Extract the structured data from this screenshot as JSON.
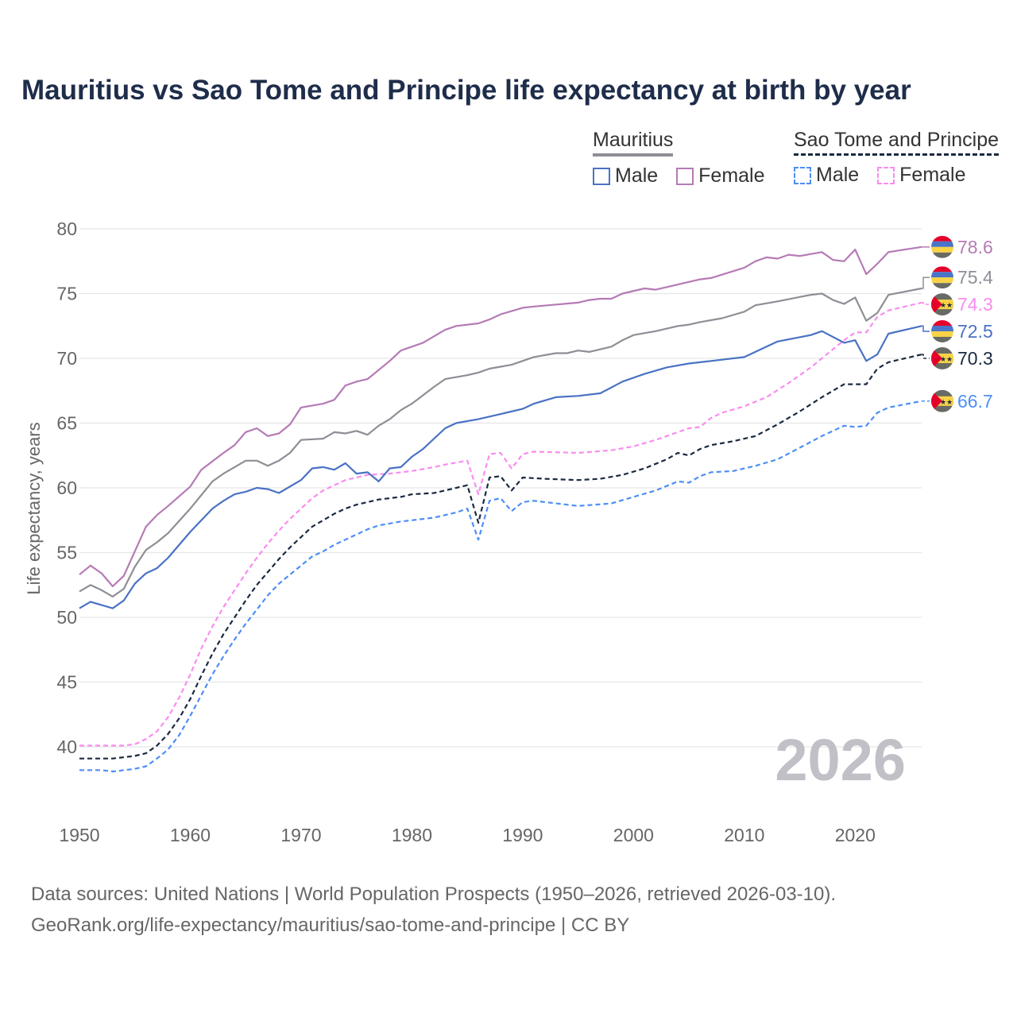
{
  "chart_data": {
    "type": "line",
    "title": "Mauritius vs Sao Tome and Principe life expectancy at birth by year",
    "ylabel": "Life expectancy, years",
    "xlabel": "",
    "xlim": [
      1950,
      2026
    ],
    "ylim": [
      37,
      80
    ],
    "x_ticks": [
      1950,
      1960,
      1970,
      1980,
      1990,
      2000,
      2010,
      2020
    ],
    "y_ticks": [
      40,
      45,
      50,
      55,
      60,
      65,
      70,
      75,
      80
    ],
    "grid": true,
    "watermark_year": "2026",
    "legend": {
      "placement": "top-right",
      "groups": [
        {
          "name": "Mauritius",
          "items": [
            "Male",
            "Female"
          ]
        },
        {
          "name": "Sao Tome and Principe",
          "items": [
            "Male",
            "Female"
          ]
        }
      ]
    },
    "series": [
      {
        "name": "Mauritius Female",
        "country": "Mauritius",
        "color": "#b57bb5",
        "dashed": false,
        "end_label": "78.6",
        "x": [
          1950,
          1951,
          1952,
          1953,
          1954,
          1955,
          1956,
          1957,
          1958,
          1960,
          1961,
          1963,
          1964,
          1965,
          1966,
          1967,
          1968,
          1969,
          1970,
          1972,
          1973,
          1974,
          1975,
          1976,
          1978,
          1979,
          1981,
          1983,
          1984,
          1986,
          1987,
          1988,
          1990,
          1991,
          1995,
          1996,
          1997,
          1998,
          1999,
          2001,
          2002,
          2004,
          2006,
          2007,
          2010,
          2011,
          2012,
          2013,
          2014,
          2015,
          2017,
          2018,
          2019,
          2020,
          2021,
          2022,
          2023,
          2026
        ],
        "y": [
          53.3,
          54.0,
          53.4,
          52.4,
          53.2,
          55.1,
          57.0,
          57.9,
          58.6,
          60.1,
          61.4,
          62.7,
          63.3,
          64.3,
          64.6,
          64.0,
          64.2,
          64.9,
          66.2,
          66.5,
          66.8,
          67.9,
          68.2,
          68.4,
          69.8,
          70.6,
          71.2,
          72.2,
          72.5,
          72.7,
          73.0,
          73.4,
          73.9,
          74.0,
          74.3,
          74.5,
          74.6,
          74.6,
          75.0,
          75.4,
          75.3,
          75.7,
          76.1,
          76.2,
          77.0,
          77.5,
          77.8,
          77.7,
          78.0,
          77.9,
          78.2,
          77.6,
          77.5,
          78.4,
          76.5,
          77.3,
          78.2,
          78.6
        ]
      },
      {
        "name": "Mauritius",
        "country": "Mauritius",
        "color": "#8e8e96",
        "dashed": false,
        "end_label": "75.4",
        "x": [
          1950,
          1951,
          1952,
          1953,
          1954,
          1955,
          1956,
          1957,
          1958,
          1960,
          1962,
          1963,
          1964,
          1965,
          1966,
          1967,
          1968,
          1969,
          1970,
          1972,
          1973,
          1974,
          1975,
          1976,
          1977,
          1978,
          1979,
          1980,
          1982,
          1983,
          1985,
          1986,
          1987,
          1989,
          1991,
          1993,
          1994,
          1995,
          1996,
          1998,
          1999,
          2000,
          2002,
          2004,
          2005,
          2006,
          2008,
          2010,
          2011,
          2013,
          2016,
          2017,
          2018,
          2019,
          2020,
          2021,
          2022,
          2023,
          2026
        ],
        "y": [
          52.0,
          52.5,
          52.1,
          51.6,
          52.2,
          53.9,
          55.2,
          55.8,
          56.5,
          58.4,
          60.5,
          61.1,
          61.6,
          62.1,
          62.1,
          61.7,
          62.1,
          62.7,
          63.7,
          63.8,
          64.3,
          64.2,
          64.4,
          64.1,
          64.8,
          65.3,
          66.0,
          66.5,
          67.8,
          68.4,
          68.7,
          68.9,
          69.2,
          69.5,
          70.1,
          70.4,
          70.4,
          70.6,
          70.5,
          70.9,
          71.4,
          71.8,
          72.1,
          72.5,
          72.6,
          72.8,
          73.1,
          73.6,
          74.1,
          74.4,
          74.9,
          75.0,
          74.5,
          74.2,
          74.7,
          72.9,
          73.5,
          74.9,
          75.4
        ]
      },
      {
        "name": "Sao Tome and Principe Female",
        "country": "Sao Tome and Principe",
        "color": "#f98cf0",
        "dashed": true,
        "end_label": "74.3",
        "x": [
          1950,
          1954,
          1955,
          1956,
          1957,
          1958,
          1959,
          1960,
          1961,
          1962,
          1963,
          1964,
          1965,
          1966,
          1967,
          1968,
          1969,
          1970,
          1971,
          1972,
          1973,
          1974,
          1975,
          1976,
          1978,
          1980,
          1982,
          1983,
          1985,
          1986,
          1987,
          1988,
          1989,
          1990,
          1991,
          1995,
          1998,
          2000,
          2002,
          2004,
          2005,
          2006,
          2007,
          2008,
          2010,
          2012,
          2014,
          2016,
          2018,
          2019,
          2020,
          2021,
          2022,
          2023,
          2026
        ],
        "y": [
          40.1,
          40.1,
          40.2,
          40.6,
          41.2,
          42.3,
          43.8,
          45.6,
          47.6,
          49.3,
          50.8,
          52.1,
          53.4,
          54.6,
          55.7,
          56.7,
          57.6,
          58.4,
          59.2,
          59.8,
          60.2,
          60.6,
          60.8,
          61.0,
          61.1,
          61.3,
          61.6,
          61.8,
          62.1,
          59.5,
          62.6,
          62.7,
          61.5,
          62.6,
          62.8,
          62.7,
          62.9,
          63.2,
          63.7,
          64.3,
          64.6,
          64.7,
          65.4,
          65.8,
          66.3,
          67.0,
          68.1,
          69.3,
          70.7,
          71.4,
          72.0,
          72.0,
          73.2,
          73.7,
          74.3
        ]
      },
      {
        "name": "Mauritius Male",
        "country": "Mauritius",
        "color": "#4a72c4",
        "dashed": false,
        "end_label": "72.5",
        "x": [
          1950,
          1951,
          1953,
          1954,
          1955,
          1956,
          1957,
          1958,
          1960,
          1962,
          1963,
          1964,
          1965,
          1966,
          1967,
          1968,
          1970,
          1971,
          1972,
          1973,
          1974,
          1975,
          1976,
          1977,
          1978,
          1979,
          1980,
          1981,
          1983,
          1984,
          1986,
          1990,
          1991,
          1993,
          1995,
          1997,
          1999,
          2001,
          2003,
          2005,
          2007,
          2010,
          2013,
          2016,
          2017,
          2019,
          2020,
          2021,
          2022,
          2023,
          2026
        ],
        "y": [
          50.7,
          51.2,
          50.7,
          51.3,
          52.6,
          53.4,
          53.8,
          54.6,
          56.6,
          58.4,
          59.0,
          59.5,
          59.7,
          60.0,
          59.9,
          59.6,
          60.6,
          61.5,
          61.6,
          61.4,
          61.9,
          61.1,
          61.2,
          60.5,
          61.5,
          61.6,
          62.4,
          63.0,
          64.6,
          65.0,
          65.3,
          66.1,
          66.5,
          67.0,
          67.1,
          67.3,
          68.2,
          68.8,
          69.3,
          69.6,
          69.8,
          70.1,
          71.3,
          71.8,
          72.1,
          71.2,
          71.4,
          69.8,
          70.3,
          71.9,
          72.5
        ]
      },
      {
        "name": "Sao Tome and Principe",
        "country": "Sao Tome and Principe",
        "color": "#1b2a40",
        "dashed": true,
        "end_label": "70.3",
        "x": [
          1950,
          1953,
          1955,
          1956,
          1957,
          1958,
          1959,
          1960,
          1961,
          1962,
          1963,
          1964,
          1965,
          1966,
          1967,
          1968,
          1969,
          1970,
          1971,
          1972,
          1973,
          1974,
          1975,
          1977,
          1979,
          1980,
          1982,
          1984,
          1985,
          1986,
          1987,
          1988,
          1989,
          1990,
          1992,
          1995,
          1997,
          1999,
          2001,
          2003,
          2004,
          2005,
          2006,
          2007,
          2009,
          2011,
          2013,
          2015,
          2017,
          2019,
          2021,
          2022,
          2023,
          2026
        ],
        "y": [
          39.1,
          39.1,
          39.3,
          39.5,
          40.1,
          41.0,
          42.2,
          43.7,
          45.5,
          47.2,
          48.7,
          50.0,
          51.3,
          52.5,
          53.5,
          54.5,
          55.4,
          56.2,
          57.0,
          57.5,
          58.0,
          58.4,
          58.7,
          59.1,
          59.3,
          59.5,
          59.6,
          60.0,
          60.2,
          57.3,
          60.8,
          60.9,
          59.8,
          60.8,
          60.7,
          60.6,
          60.7,
          61.0,
          61.5,
          62.2,
          62.7,
          62.5,
          63.0,
          63.3,
          63.6,
          64.0,
          64.9,
          65.9,
          67.0,
          68.0,
          68.0,
          69.2,
          69.7,
          70.3
        ]
      },
      {
        "name": "Sao Tome and Principe Male",
        "country": "Sao Tome and Principe",
        "color": "#4d8ff5",
        "dashed": true,
        "end_label": "66.7",
        "x": [
          1950,
          1952,
          1953,
          1955,
          1956,
          1957,
          1958,
          1959,
          1960,
          1961,
          1962,
          1963,
          1964,
          1965,
          1966,
          1967,
          1968,
          1969,
          1970,
          1971,
          1972,
          1973,
          1974,
          1975,
          1976,
          1977,
          1979,
          1980,
          1982,
          1984,
          1985,
          1986,
          1987,
          1988,
          1989,
          1990,
          1991,
          1995,
          1998,
          2000,
          2002,
          2004,
          2005,
          2006,
          2007,
          2009,
          2011,
          2013,
          2015,
          2017,
          2019,
          2020,
          2021,
          2022,
          2023,
          2026
        ],
        "y": [
          38.2,
          38.2,
          38.1,
          38.3,
          38.5,
          39.1,
          39.8,
          40.9,
          42.4,
          44.0,
          45.6,
          47.0,
          48.3,
          49.5,
          50.6,
          51.7,
          52.6,
          53.3,
          54.0,
          54.7,
          55.1,
          55.6,
          56.0,
          56.4,
          56.8,
          57.1,
          57.4,
          57.5,
          57.7,
          58.1,
          58.4,
          56.0,
          59.0,
          59.2,
          58.2,
          58.9,
          59.0,
          58.6,
          58.8,
          59.3,
          59.8,
          60.5,
          60.4,
          60.9,
          61.2,
          61.3,
          61.7,
          62.2,
          63.1,
          64.0,
          64.8,
          64.7,
          64.8,
          65.8,
          66.2,
          66.7
        ]
      }
    ],
    "source_lines": [
      "Data sources: United Nations | World Population Prospects (1950–2026, retrieved 2026-03-10).",
      "GeoRank.org/life-expectancy/mauritius/sao-tome-and-principe | CC BY"
    ]
  }
}
